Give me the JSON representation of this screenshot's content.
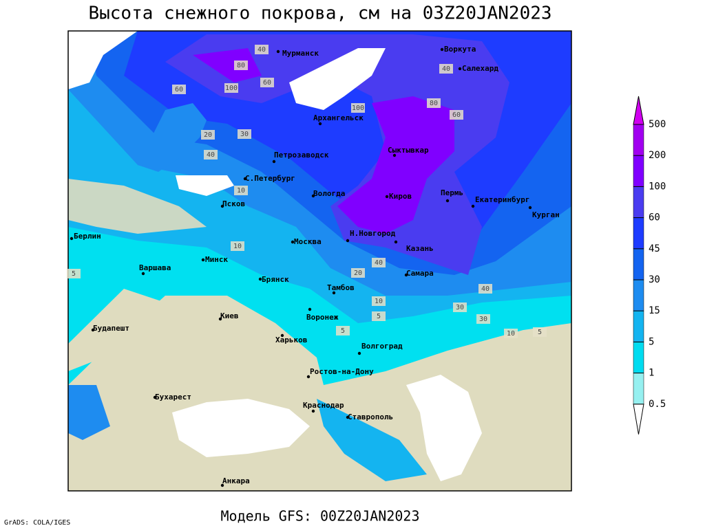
{
  "title": "Высота снежного покрова, см на 03Z20JAN2023",
  "subtitle": "Модель GFS: 00Z20JAN2023",
  "credit": "GrADS: COLA/IGES",
  "cities": [
    "Мурманск",
    "Воркута",
    "Салехард",
    "Архангельск",
    "Сыктывкар",
    "Петрозаводск",
    "С.Петербург",
    "Вологда",
    "Киров",
    "Пермь",
    "Екатеринбург",
    "Курган",
    "Псков",
    "Берлин",
    "Москва",
    "Н.Новгород",
    "Казань",
    "Минск",
    "Варшава",
    "Самара",
    "Брянск",
    "Тамбов",
    "Воронеж",
    "Киев",
    "Будапешт",
    "Харьков",
    "Волгоград",
    "Ростов-на-Дону",
    "Бухарест",
    "Краснодар",
    "Ставрополь",
    "Анкара"
  ],
  "contour_labels": [
    40,
    80,
    60,
    100,
    60,
    40,
    100,
    80,
    60,
    30,
    40,
    20,
    10,
    5,
    10,
    20,
    40,
    30,
    10,
    5,
    5,
    30,
    10,
    5,
    40
  ],
  "colorbar": {
    "levels": [
      0.5,
      1,
      5,
      15,
      30,
      45,
      60,
      100,
      200,
      500
    ],
    "colors": [
      "#ffffff",
      "#96f0f0",
      "#00dcf0",
      "#14b4f0",
      "#1e8cf0",
      "#1464f0",
      "#1e3cff",
      "#4a3cf0",
      "#8000ff",
      "#a100f0",
      "#d000f0"
    ]
  }
}
